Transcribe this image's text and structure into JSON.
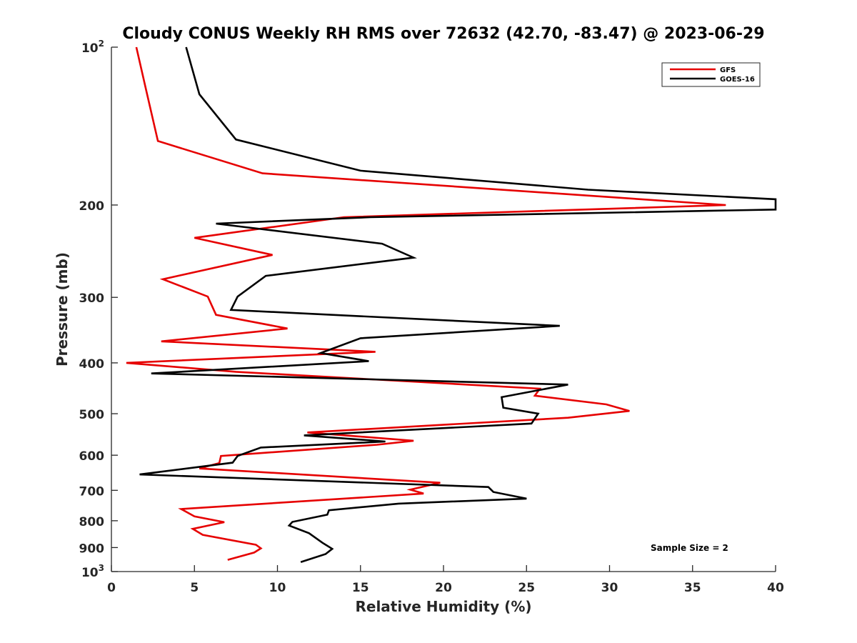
{
  "chart_data": {
    "type": "line",
    "title": "Cloudy CONUS Weekly RH RMS over 72632 (42.70, -83.47) @ 2023-06-29",
    "xlabel": "Relative Humidity (%)",
    "ylabel": "Pressure (mb)",
    "xlim": [
      0,
      40
    ],
    "ylim": [
      100,
      1000
    ],
    "y_scale": "log",
    "y_reversed": true,
    "grid": false,
    "legend_position": "top-right",
    "x_ticks": [
      "0",
      "5",
      "10",
      "15",
      "20",
      "25",
      "30",
      "35",
      "40"
    ],
    "y_ticks": [
      {
        "value": 100,
        "label": "10",
        "sup": "2"
      },
      {
        "value": 200,
        "label": "200",
        "sup": ""
      },
      {
        "value": 300,
        "label": "300",
        "sup": ""
      },
      {
        "value": 400,
        "label": "400",
        "sup": ""
      },
      {
        "value": 500,
        "label": "500",
        "sup": ""
      },
      {
        "value": 600,
        "label": "600",
        "sup": ""
      },
      {
        "value": 700,
        "label": "700",
        "sup": ""
      },
      {
        "value": 800,
        "label": "800",
        "sup": ""
      },
      {
        "value": 900,
        "label": "900",
        "sup": ""
      },
      {
        "value": 1000,
        "label": "10",
        "sup": "3"
      }
    ],
    "annotation": "Sample Size = 2",
    "series": [
      {
        "name": "GFS",
        "color": "#e60000",
        "points": [
          [
            1.5,
            100
          ],
          [
            2.1,
            121
          ],
          [
            2.8,
            151
          ],
          [
            9.1,
            174
          ],
          [
            37.0,
            200
          ],
          [
            14.0,
            211
          ],
          [
            5.0,
            231
          ],
          [
            9.7,
            249
          ],
          [
            3.1,
            277
          ],
          [
            5.8,
            299
          ],
          [
            6.3,
            324
          ],
          [
            10.6,
            344
          ],
          [
            3.0,
            364
          ],
          [
            15.9,
            381
          ],
          [
            0.9,
            400
          ],
          [
            7.5,
            416
          ],
          [
            25.8,
            448
          ],
          [
            25.5,
            462
          ],
          [
            29.8,
            480
          ],
          [
            31.2,
            494
          ],
          [
            27.5,
            509
          ],
          [
            11.8,
            543
          ],
          [
            18.2,
            563
          ],
          [
            16.0,
            573
          ],
          [
            6.6,
            602
          ],
          [
            6.5,
            621
          ],
          [
            5.3,
            636
          ],
          [
            19.8,
            677
          ],
          [
            18.0,
            698
          ],
          [
            18.8,
            710
          ],
          [
            4.2,
            760
          ],
          [
            5.0,
            785
          ],
          [
            6.8,
            805
          ],
          [
            4.9,
            829
          ],
          [
            5.5,
            851
          ],
          [
            8.7,
            889
          ],
          [
            9.0,
            903
          ],
          [
            8.6,
            920
          ],
          [
            7.0,
            950
          ]
        ]
      },
      {
        "name": "GOES-16",
        "color": "#000000",
        "points": [
          [
            4.5,
            100
          ],
          [
            5.3,
            123
          ],
          [
            7.5,
            150
          ],
          [
            15.0,
            172
          ],
          [
            28.7,
            187
          ],
          [
            40.0,
            195
          ],
          [
            40.0,
            204
          ],
          [
            15.6,
            211
          ],
          [
            6.3,
            217
          ],
          [
            16.3,
            237
          ],
          [
            18.2,
            252
          ],
          [
            9.3,
            273
          ],
          [
            7.6,
            299
          ],
          [
            7.2,
            317
          ],
          [
            27.0,
            340
          ],
          [
            15.0,
            359
          ],
          [
            12.6,
            383
          ],
          [
            15.5,
            397
          ],
          [
            2.4,
            419
          ],
          [
            27.5,
            440
          ],
          [
            23.5,
            465
          ],
          [
            23.6,
            487
          ],
          [
            25.7,
            500
          ],
          [
            25.3,
            522
          ],
          [
            11.6,
            550
          ],
          [
            16.5,
            565
          ],
          [
            9.0,
            580
          ],
          [
            7.6,
            602
          ],
          [
            7.3,
            620
          ],
          [
            1.7,
            653
          ],
          [
            22.7,
            690
          ],
          [
            23.0,
            705
          ],
          [
            25.0,
            726
          ],
          [
            17.3,
            742
          ],
          [
            13.1,
            764
          ],
          [
            13.0,
            779
          ],
          [
            10.9,
            804
          ],
          [
            10.7,
            817
          ],
          [
            11.9,
            845
          ],
          [
            12.7,
            881
          ],
          [
            13.3,
            905
          ],
          [
            12.9,
            926
          ],
          [
            11.4,
            959
          ]
        ]
      }
    ]
  }
}
